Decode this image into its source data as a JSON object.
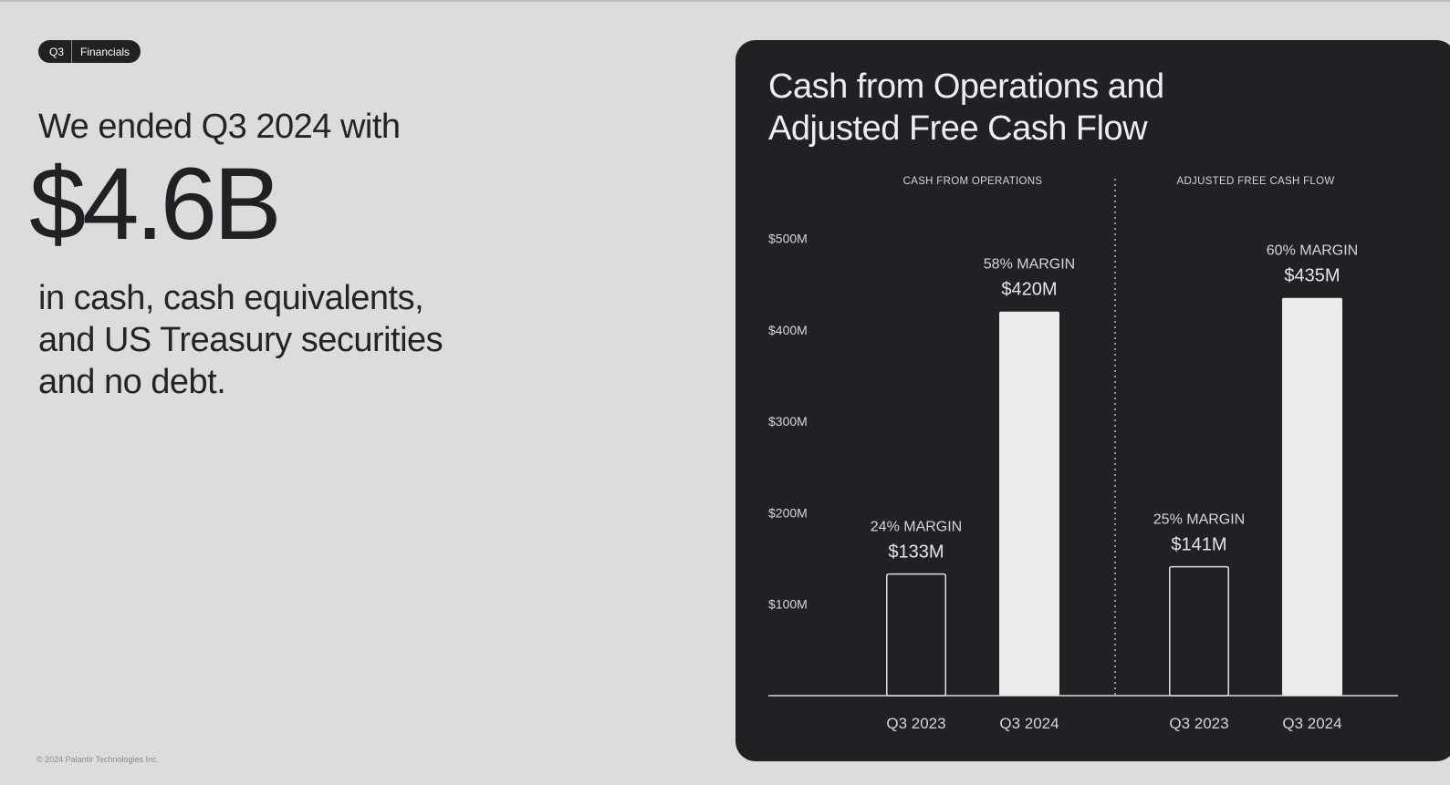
{
  "pill": {
    "segment_1": "Q3",
    "segment_2": "Financials"
  },
  "headline": {
    "intro": "We ended Q3 2024 with",
    "amount": "$4.6B",
    "lines": [
      "in cash, cash equivalents,",
      "and US Treasury securities",
      "and no debt."
    ]
  },
  "footer": "© 2024 Palantir Technologies Inc.",
  "colors": {
    "page_bg": "#dcdcdc",
    "panel_bg": "#1f2124",
    "bar_fill": "#ebebeb",
    "text_light": "#e6e6e6"
  },
  "chart_data": {
    "type": "bar",
    "title_lines": [
      "Cash from Operations and",
      "Adjusted Free Cash Flow"
    ],
    "ylim": [
      0,
      500
    ],
    "yticks": [
      {
        "value": 100,
        "label": "$100M"
      },
      {
        "value": 200,
        "label": "$200M"
      },
      {
        "value": 300,
        "label": "$300M"
      },
      {
        "value": 400,
        "label": "$400M"
      },
      {
        "value": 500,
        "label": "$500M"
      }
    ],
    "groups": [
      {
        "name": "CASH FROM OPERATIONS",
        "bars": [
          {
            "category": "Q3 2023",
            "value": 133,
            "value_label": "$133M",
            "margin_label": "24% MARGIN",
            "style": "outline"
          },
          {
            "category": "Q3 2024",
            "value": 420,
            "value_label": "$420M",
            "margin_label": "58% MARGIN",
            "style": "filled"
          }
        ]
      },
      {
        "name": "ADJUSTED FREE CASH FLOW",
        "bars": [
          {
            "category": "Q3 2023",
            "value": 141,
            "value_label": "$141M",
            "margin_label": "25% MARGIN",
            "style": "outline"
          },
          {
            "category": "Q3 2024",
            "value": 435,
            "value_label": "$435M",
            "margin_label": "60% MARGIN",
            "style": "filled"
          }
        ]
      }
    ],
    "grid": false
  }
}
